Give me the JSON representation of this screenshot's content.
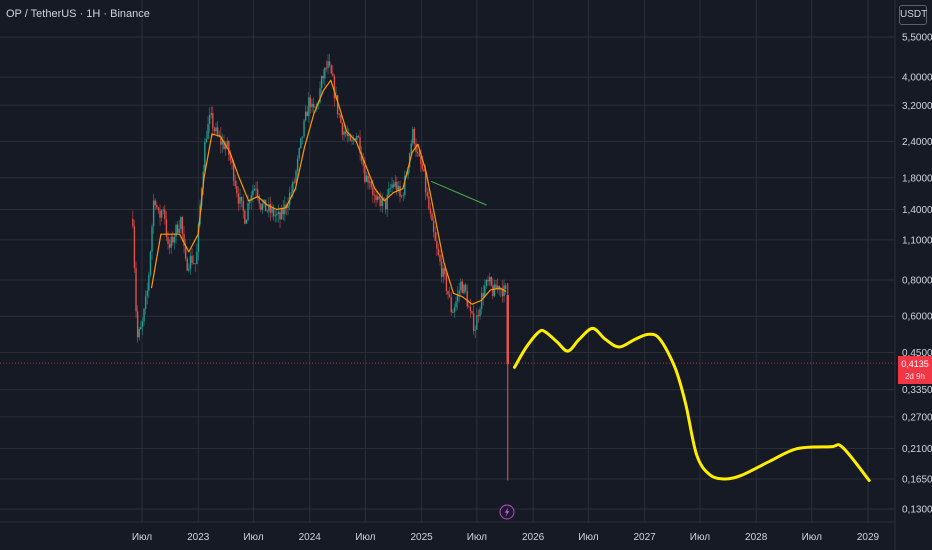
{
  "title": "OP / TetherUS · 1H · Binance",
  "currency_button": "USDT",
  "last_price": "0,4135",
  "countdown": "2d 9h",
  "chart_data": {
    "type": "candlestick",
    "scale": "log",
    "y_ticks": [
      {
        "value": 5.5,
        "label": "5,5000"
      },
      {
        "value": 4.0,
        "label": "4,0000"
      },
      {
        "value": 3.2,
        "label": "3,2000"
      },
      {
        "value": 2.4,
        "label": "2,4000"
      },
      {
        "value": 1.8,
        "label": "1,8000"
      },
      {
        "value": 1.4,
        "label": "1,4000"
      },
      {
        "value": 1.1,
        "label": "1,1000"
      },
      {
        "value": 0.8,
        "label": "0,8000"
      },
      {
        "value": 0.6,
        "label": "0,6000"
      },
      {
        "value": 0.45,
        "label": "0,4500"
      },
      {
        "value": 0.335,
        "label": "0,3350"
      },
      {
        "value": 0.27,
        "label": "0,2700"
      },
      {
        "value": 0.21,
        "label": "0,2100"
      },
      {
        "value": 0.165,
        "label": "0,1650"
      },
      {
        "value": 0.13,
        "label": "0,1300"
      }
    ],
    "x_ticks": [
      {
        "date": "2022-07",
        "label": "Июл"
      },
      {
        "date": "2023-01",
        "label": "2023"
      },
      {
        "date": "2023-07",
        "label": "Июл"
      },
      {
        "date": "2024-01",
        "label": "2024"
      },
      {
        "date": "2024-07",
        "label": "Июл"
      },
      {
        "date": "2025-01",
        "label": "2025"
      },
      {
        "date": "2025-07",
        "label": "Июл"
      },
      {
        "date": "2026-01",
        "label": "2026"
      },
      {
        "date": "2026-07",
        "label": "Июл"
      },
      {
        "date": "2027-01",
        "label": "2027"
      },
      {
        "date": "2027-07",
        "label": "Июл"
      },
      {
        "date": "2028-01",
        "label": "2028"
      },
      {
        "date": "2028-07",
        "label": "Июл"
      },
      {
        "date": "2029-01",
        "label": "2029"
      }
    ],
    "price_path": [
      [
        "2022-06-01",
        1.3
      ],
      [
        "2022-06-15",
        0.5
      ],
      [
        "2022-07-01",
        0.55
      ],
      [
        "2022-07-20",
        0.75
      ],
      [
        "2022-08-10",
        1.6
      ],
      [
        "2022-08-25",
        1.3
      ],
      [
        "2022-09-10",
        1.45
      ],
      [
        "2022-09-25",
        1.0
      ],
      [
        "2022-10-15",
        1.15
      ],
      [
        "2022-11-05",
        1.3
      ],
      [
        "2022-11-20",
        0.9
      ],
      [
        "2022-12-10",
        0.95
      ],
      [
        "2022-12-25",
        0.9
      ],
      [
        "2023-01-10",
        1.6
      ],
      [
        "2023-01-25",
        2.5
      ],
      [
        "2023-02-10",
        2.9
      ],
      [
        "2023-02-25",
        2.6
      ],
      [
        "2023-03-15",
        2.4
      ],
      [
        "2023-04-05",
        2.3
      ],
      [
        "2023-04-25",
        1.9
      ],
      [
        "2023-05-15",
        1.5
      ],
      [
        "2023-06-05",
        1.3
      ],
      [
        "2023-06-20",
        1.6
      ],
      [
        "2023-07-10",
        1.7
      ],
      [
        "2023-07-25",
        1.45
      ],
      [
        "2023-08-15",
        1.4
      ],
      [
        "2023-09-05",
        1.35
      ],
      [
        "2023-09-25",
        1.3
      ],
      [
        "2023-10-10",
        1.4
      ],
      [
        "2023-10-25",
        1.55
      ],
      [
        "2023-11-10",
        1.7
      ],
      [
        "2023-11-25",
        2.1
      ],
      [
        "2023-12-10",
        2.6
      ],
      [
        "2024-01-01",
        3.4
      ],
      [
        "2024-01-10",
        3.0
      ],
      [
        "2024-01-25",
        3.2
      ],
      [
        "2024-02-10",
        3.9
      ],
      [
        "2024-02-28",
        4.4
      ],
      [
        "2024-03-15",
        3.9
      ],
      [
        "2024-04-01",
        3.1
      ],
      [
        "2024-04-15",
        2.7
      ],
      [
        "2024-05-01",
        2.5
      ],
      [
        "2024-05-15",
        2.3
      ],
      [
        "2024-06-01",
        2.6
      ],
      [
        "2024-06-15",
        2.3
      ],
      [
        "2024-07-01",
        1.8
      ],
      [
        "2024-07-15",
        1.8
      ],
      [
        "2024-08-05",
        1.45
      ],
      [
        "2024-08-20",
        1.5
      ],
      [
        "2024-09-05",
        1.45
      ],
      [
        "2024-09-25",
        1.7
      ],
      [
        "2024-10-10",
        1.7
      ],
      [
        "2024-10-25",
        1.5
      ],
      [
        "2024-11-10",
        1.8
      ],
      [
        "2024-11-25",
        2.3
      ],
      [
        "2024-12-05",
        2.6
      ],
      [
        "2024-12-20",
        2.1
      ],
      [
        "2025-01-05",
        1.9
      ],
      [
        "2025-01-20",
        1.5
      ],
      [
        "2025-02-05",
        1.2
      ],
      [
        "2025-02-20",
        1.0
      ],
      [
        "2025-03-10",
        0.85
      ],
      [
        "2025-03-25",
        0.75
      ],
      [
        "2025-04-10",
        0.62
      ],
      [
        "2025-04-25",
        0.68
      ],
      [
        "2025-05-10",
        0.78
      ],
      [
        "2025-05-25",
        0.72
      ],
      [
        "2025-06-10",
        0.6
      ],
      [
        "2025-06-25",
        0.55
      ],
      [
        "2025-07-10",
        0.66
      ],
      [
        "2025-07-25",
        0.75
      ],
      [
        "2025-08-10",
        0.78
      ],
      [
        "2025-08-25",
        0.72
      ],
      [
        "2025-09-10",
        0.77
      ],
      [
        "2025-09-25",
        0.74
      ],
      [
        "2025-10-05",
        0.71
      ],
      [
        "2025-10-10",
        0.41
      ]
    ],
    "crash_wick_low": 0.163,
    "ma_path": [
      [
        "2022-08-01",
        0.75
      ],
      [
        "2022-09-01",
        1.15
      ],
      [
        "2022-10-01",
        1.15
      ],
      [
        "2022-11-01",
        1.15
      ],
      [
        "2022-12-01",
        1.0
      ],
      [
        "2023-01-01",
        1.15
      ],
      [
        "2023-01-20",
        1.8
      ],
      [
        "2023-02-15",
        2.55
      ],
      [
        "2023-03-15",
        2.5
      ],
      [
        "2023-04-15",
        2.2
      ],
      [
        "2023-05-15",
        1.8
      ],
      [
        "2023-06-15",
        1.5
      ],
      [
        "2023-07-15",
        1.55
      ],
      [
        "2023-08-15",
        1.45
      ],
      [
        "2023-09-15",
        1.4
      ],
      [
        "2023-10-15",
        1.42
      ],
      [
        "2023-11-15",
        1.65
      ],
      [
        "2023-12-15",
        2.3
      ],
      [
        "2024-01-15",
        3.0
      ],
      [
        "2024-02-15",
        3.6
      ],
      [
        "2024-03-10",
        3.9
      ],
      [
        "2024-04-01",
        3.3
      ],
      [
        "2024-05-01",
        2.6
      ],
      [
        "2024-06-01",
        2.4
      ],
      [
        "2024-07-01",
        2.0
      ],
      [
        "2024-08-01",
        1.65
      ],
      [
        "2024-09-01",
        1.5
      ],
      [
        "2024-10-01",
        1.6
      ],
      [
        "2024-11-01",
        1.65
      ],
      [
        "2024-12-01",
        2.2
      ],
      [
        "2024-12-20",
        2.35
      ],
      [
        "2025-01-15",
        1.9
      ],
      [
        "2025-02-15",
        1.3
      ],
      [
        "2025-03-15",
        0.92
      ],
      [
        "2025-04-15",
        0.72
      ],
      [
        "2025-05-15",
        0.7
      ],
      [
        "2025-06-15",
        0.66
      ],
      [
        "2025-07-15",
        0.68
      ],
      [
        "2025-08-15",
        0.74
      ],
      [
        "2025-09-15",
        0.75
      ],
      [
        "2025-10-05",
        0.73
      ]
    ],
    "green_trendline": [
      [
        "2025-02-01",
        1.75
      ],
      [
        "2025-08-01",
        1.45
      ]
    ],
    "yellow_projection": [
      [
        "2025-11-01",
        0.4
      ],
      [
        "2025-12-10",
        0.47
      ],
      [
        "2026-01-20",
        0.53
      ],
      [
        "2026-02-10",
        0.53
      ],
      [
        "2026-03-20",
        0.49
      ],
      [
        "2026-04-25",
        0.455
      ],
      [
        "2026-06-01",
        0.5
      ],
      [
        "2026-07-15",
        0.545
      ],
      [
        "2026-08-25",
        0.5
      ],
      [
        "2026-10-10",
        0.47
      ],
      [
        "2026-12-01",
        0.5
      ],
      [
        "2027-01-15",
        0.52
      ],
      [
        "2027-02-20",
        0.5
      ],
      [
        "2027-04-10",
        0.4
      ],
      [
        "2027-05-15",
        0.3
      ],
      [
        "2027-06-20",
        0.2
      ],
      [
        "2027-08-01",
        0.171
      ],
      [
        "2027-09-20",
        0.165
      ],
      [
        "2027-11-15",
        0.17
      ],
      [
        "2028-02-15",
        0.19
      ],
      [
        "2028-05-15",
        0.21
      ],
      [
        "2028-09-01",
        0.213
      ],
      [
        "2028-10-10",
        0.212
      ],
      [
        "2029-01-05",
        0.163
      ]
    ]
  },
  "colors": {
    "background": "#161a25",
    "up": "#26a69a",
    "down": "#ef5350",
    "ma": "#ff9800",
    "projection": "#ffee00",
    "trendline": "#4caf50",
    "grid": "#2a2e39",
    "last_price": "#f23645"
  },
  "icons": {
    "event_marker": "lightning-icon"
  }
}
